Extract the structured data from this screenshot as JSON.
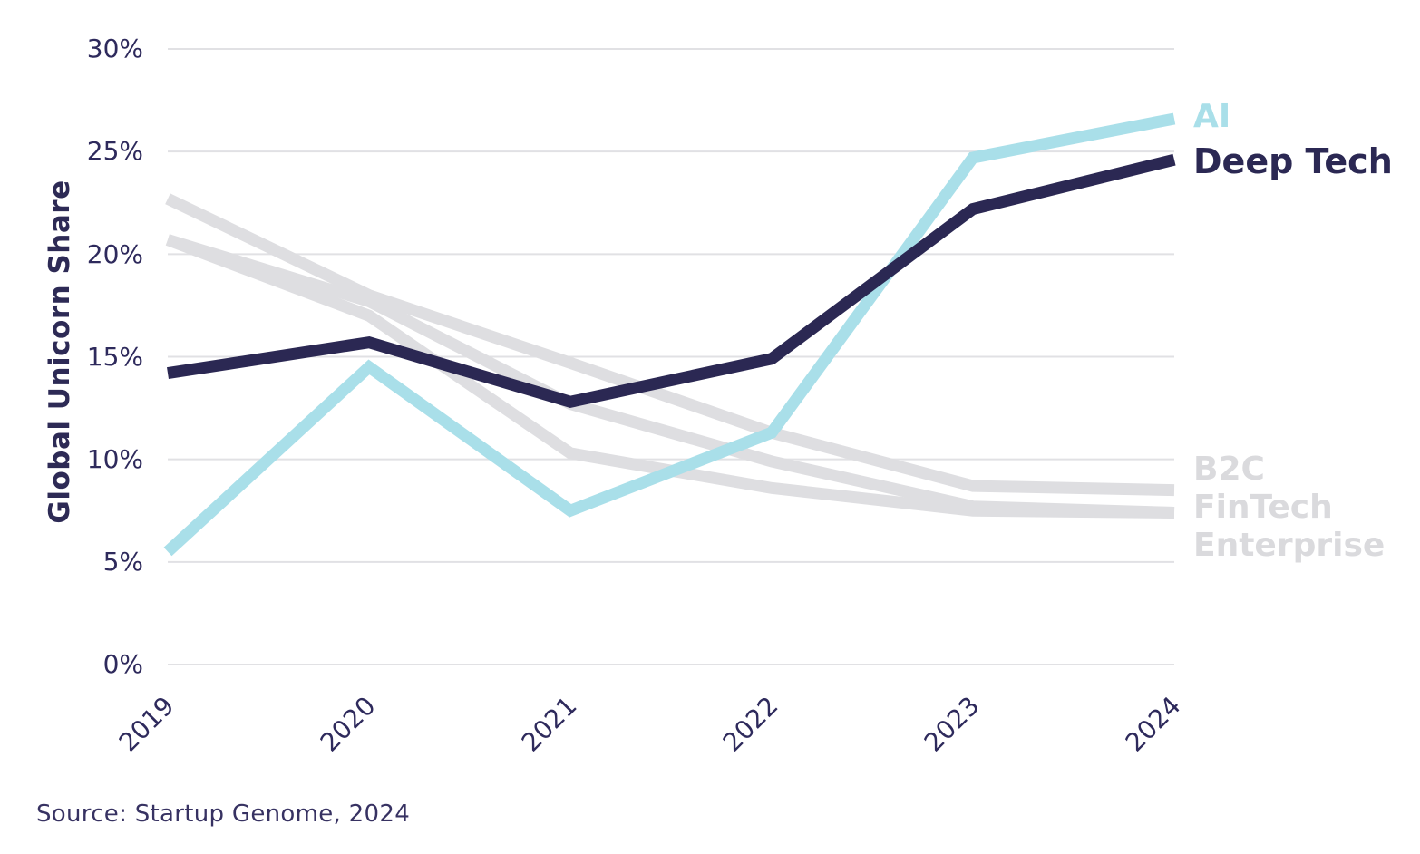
{
  "source": {
    "text": "Source: Startup Genome, 2024"
  },
  "chart_data": {
    "type": "line",
    "title": "",
    "xlabel": "",
    "ylabel": "Global Unicorn Share",
    "x_labels": [
      "2019",
      "2020",
      "2021",
      "2022",
      "2023",
      "2024"
    ],
    "y_ticks": [
      "30%",
      "25%",
      "20%",
      "15%",
      "10%",
      "5%",
      "0%"
    ],
    "y_tick_values": [
      30,
      25,
      20,
      15,
      10,
      5,
      0
    ],
    "ylim": [
      0,
      30
    ],
    "grid": true,
    "gridline_color": "#e1e1e4",
    "background_color": "#ffffff",
    "legend_position": "right-of-line-ends",
    "series": [
      {
        "name": "B2C",
        "color": "#dedee1",
        "line_width": 13,
        "values": [
          22.7,
          18.0,
          14.7,
          11.3,
          8.7,
          8.5
        ]
      },
      {
        "name": "FinTech",
        "color": "#dedee1",
        "line_width": 13,
        "values": [
          20.7,
          17.7,
          12.7,
          9.9,
          7.7,
          7.4
        ]
      },
      {
        "name": "Enterprise",
        "color": "#dedee1",
        "line_width": 13,
        "values": [
          20.7,
          17.0,
          10.3,
          8.6,
          7.5,
          7.4
        ]
      },
      {
        "name": "AI",
        "color": "#a9dfe9",
        "line_width": 13,
        "values": [
          5.5,
          14.5,
          7.5,
          11.3,
          24.7,
          26.6
        ]
      },
      {
        "name": "Deep Tech",
        "color": "#2b2853",
        "line_width": 13,
        "values": [
          14.2,
          15.7,
          12.8,
          14.9,
          22.2,
          24.6
        ]
      }
    ],
    "legend": [
      {
        "label": "AI",
        "color": "#a9dfe9"
      },
      {
        "label": "Deep Tech",
        "color": "#2b2853"
      },
      {
        "label": "B2C",
        "color": "#dadadd"
      },
      {
        "label": "FinTech",
        "color": "#dadadd"
      },
      {
        "label": "Enterprise",
        "color": "#dadadd"
      }
    ]
  }
}
